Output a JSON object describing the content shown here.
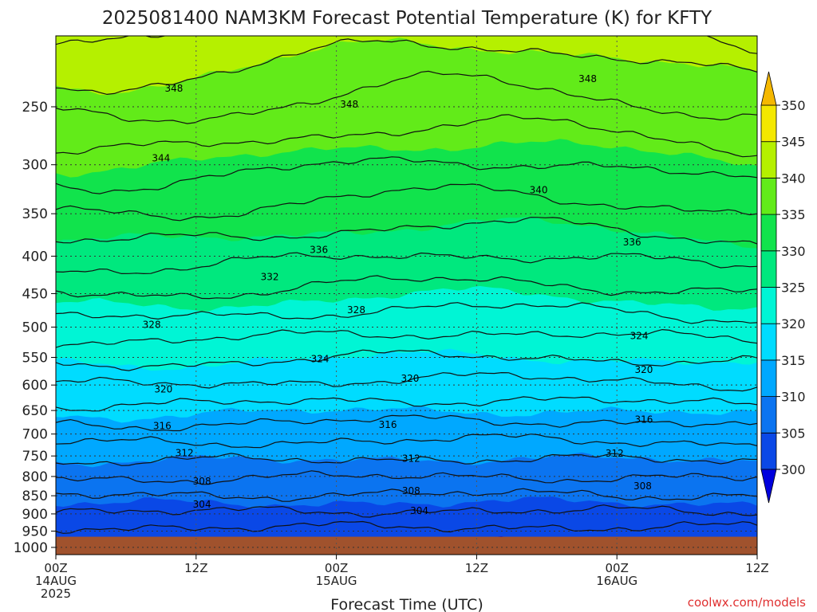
{
  "chart_data": {
    "type": "heatmap",
    "title": "2025081400 NAM3KM Forecast Potential Temperature (K) for KFTY",
    "xlabel": "Forecast Time (UTC)",
    "ylabel": "",
    "credit": "coolwx.com/models",
    "x_ticks": [
      {
        "hour": 0,
        "lines": [
          "00Z",
          "14AUG",
          "2025"
        ]
      },
      {
        "hour": 12,
        "lines": [
          "12Z"
        ]
      },
      {
        "hour": 24,
        "lines": [
          "00Z",
          "15AUG"
        ]
      },
      {
        "hour": 36,
        "lines": [
          "12Z"
        ]
      },
      {
        "hour": 48,
        "lines": [
          "00Z",
          "16AUG"
        ]
      },
      {
        "hour": 60,
        "lines": [
          "12Z"
        ]
      }
    ],
    "xlim": [
      0,
      60
    ],
    "y_ticks": [
      250,
      300,
      350,
      400,
      450,
      500,
      550,
      600,
      650,
      700,
      750,
      800,
      850,
      900,
      950,
      1000
    ],
    "ylim": [
      200,
      1023
    ],
    "yscale": "log",
    "ground_pressure": 967,
    "grid": true,
    "colorbar": {
      "levels": [
        300,
        305,
        310,
        315,
        320,
        325,
        330,
        335,
        340,
        345,
        350
      ],
      "colors": [
        "#0000dd",
        "#0a48e6",
        "#0b74f0",
        "#00a8ff",
        "#00dcff",
        "#00f5d5",
        "#00e87e",
        "#11e34c",
        "#62eb19",
        "#b5f000",
        "#f4e800",
        "#f5b800"
      ],
      "placement": "right"
    },
    "contour_labels": [
      {
        "value": "348",
        "hour": 10.1,
        "p": 236
      },
      {
        "value": "348",
        "hour": 25.1,
        "p": 248
      },
      {
        "value": "348",
        "hour": 45.5,
        "p": 229
      },
      {
        "value": "344",
        "hour": 9.0,
        "p": 294
      },
      {
        "value": "340",
        "hour": 41.3,
        "p": 325
      },
      {
        "value": "336",
        "hour": 22.5,
        "p": 392
      },
      {
        "value": "336",
        "hour": 49.3,
        "p": 383
      },
      {
        "value": "332",
        "hour": 18.3,
        "p": 427
      },
      {
        "value": "328",
        "hour": 8.2,
        "p": 496
      },
      {
        "value": "328",
        "hour": 25.7,
        "p": 474
      },
      {
        "value": "324",
        "hour": 22.6,
        "p": 553
      },
      {
        "value": "324",
        "hour": 49.9,
        "p": 514
      },
      {
        "value": "320",
        "hour": 9.2,
        "p": 608
      },
      {
        "value": "320",
        "hour": 30.3,
        "p": 588
      },
      {
        "value": "320",
        "hour": 50.3,
        "p": 572
      },
      {
        "value": "316",
        "hour": 9.1,
        "p": 682
      },
      {
        "value": "316",
        "hour": 28.4,
        "p": 680
      },
      {
        "value": "316",
        "hour": 50.3,
        "p": 669
      },
      {
        "value": "312",
        "hour": 11.0,
        "p": 743
      },
      {
        "value": "312",
        "hour": 30.4,
        "p": 756
      },
      {
        "value": "312",
        "hour": 47.8,
        "p": 744
      },
      {
        "value": "308",
        "hour": 12.5,
        "p": 812
      },
      {
        "value": "308",
        "hour": 30.4,
        "p": 837
      },
      {
        "value": "308",
        "hour": 50.2,
        "p": 825
      },
      {
        "value": "304",
        "hour": 12.5,
        "p": 873
      },
      {
        "value": "304",
        "hour": 31.1,
        "p": 891
      }
    ]
  }
}
